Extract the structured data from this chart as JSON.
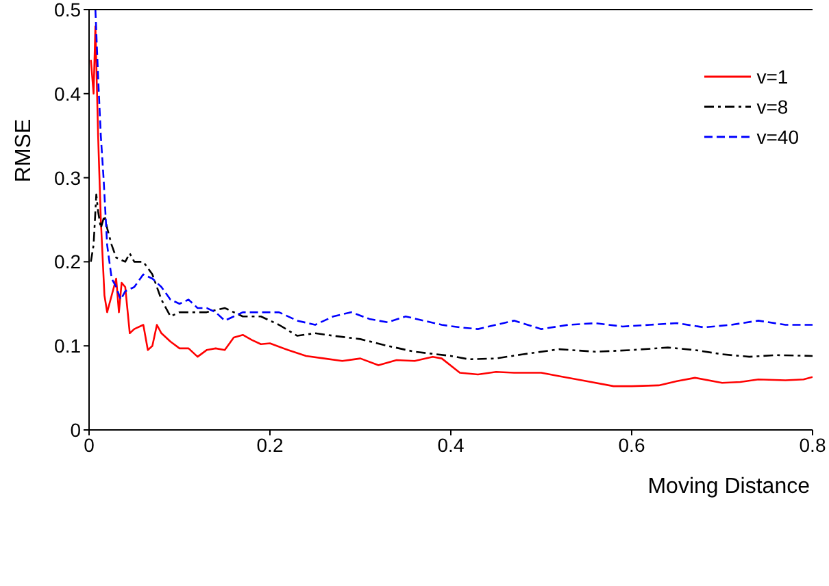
{
  "chart_data": {
    "type": "line",
    "xlabel": "Moving Distance",
    "ylabel": "RMSE",
    "xlim": [
      0,
      0.8
    ],
    "xticks": [
      0,
      0.2,
      0.4,
      0.6,
      0.8
    ],
    "ylim": [
      0,
      0.5
    ],
    "yticks": [
      0,
      0.1,
      0.2,
      0.3,
      0.4,
      0.5
    ],
    "legend": "top right",
    "marker": "none",
    "series": [
      {
        "name": "v=1",
        "color": "#ff0000",
        "line_style": "solid",
        "x": [
          0.002,
          0.005,
          0.007,
          0.01,
          0.013,
          0.017,
          0.02,
          0.025,
          0.03,
          0.033,
          0.036,
          0.04,
          0.045,
          0.05,
          0.06,
          0.065,
          0.07,
          0.075,
          0.08,
          0.09,
          0.1,
          0.11,
          0.12,
          0.13,
          0.14,
          0.15,
          0.16,
          0.17,
          0.18,
          0.19,
          0.2,
          0.22,
          0.24,
          0.26,
          0.28,
          0.3,
          0.32,
          0.34,
          0.36,
          0.38,
          0.39,
          0.41,
          0.43,
          0.45,
          0.47,
          0.5,
          0.52,
          0.55,
          0.58,
          0.6,
          0.63,
          0.65,
          0.67,
          0.7,
          0.72,
          0.74,
          0.77,
          0.79,
          0.8
        ],
        "values": [
          0.44,
          0.4,
          0.48,
          0.35,
          0.25,
          0.16,
          0.14,
          0.16,
          0.18,
          0.14,
          0.175,
          0.17,
          0.115,
          0.12,
          0.125,
          0.095,
          0.1,
          0.125,
          0.115,
          0.105,
          0.097,
          0.097,
          0.087,
          0.095,
          0.097,
          0.095,
          0.11,
          0.113,
          0.107,
          0.102,
          0.103,
          0.095,
          0.088,
          0.085,
          0.082,
          0.085,
          0.077,
          0.083,
          0.082,
          0.087,
          0.085,
          0.068,
          0.066,
          0.069,
          0.068,
          0.068,
          0.064,
          0.058,
          0.052,
          0.052,
          0.053,
          0.058,
          0.062,
          0.056,
          0.057,
          0.06,
          0.059,
          0.06,
          0.063
        ]
      },
      {
        "name": "v=8",
        "color": "#000000",
        "line_style": "dashdot",
        "x": [
          0.002,
          0.005,
          0.008,
          0.01,
          0.013,
          0.017,
          0.02,
          0.025,
          0.03,
          0.04,
          0.045,
          0.05,
          0.06,
          0.07,
          0.08,
          0.09,
          0.1,
          0.11,
          0.13,
          0.15,
          0.17,
          0.19,
          0.21,
          0.23,
          0.25,
          0.27,
          0.3,
          0.33,
          0.36,
          0.4,
          0.42,
          0.45,
          0.48,
          0.52,
          0.56,
          0.6,
          0.64,
          0.67,
          0.7,
          0.73,
          0.76,
          0.8
        ],
        "values": [
          0.2,
          0.22,
          0.28,
          0.26,
          0.24,
          0.255,
          0.24,
          0.22,
          0.205,
          0.2,
          0.21,
          0.2,
          0.2,
          0.185,
          0.155,
          0.135,
          0.14,
          0.14,
          0.14,
          0.145,
          0.135,
          0.135,
          0.125,
          0.112,
          0.115,
          0.112,
          0.108,
          0.1,
          0.093,
          0.088,
          0.084,
          0.085,
          0.09,
          0.096,
          0.093,
          0.095,
          0.098,
          0.095,
          0.09,
          0.087,
          0.089,
          0.088
        ]
      },
      {
        "name": "v=40",
        "color": "#0000ff",
        "line_style": "dashed",
        "x": [
          0.007,
          0.01,
          0.013,
          0.016,
          0.02,
          0.025,
          0.03,
          0.035,
          0.04,
          0.05,
          0.06,
          0.07,
          0.08,
          0.09,
          0.1,
          0.11,
          0.12,
          0.13,
          0.14,
          0.15,
          0.16,
          0.17,
          0.19,
          0.21,
          0.23,
          0.25,
          0.27,
          0.29,
          0.31,
          0.33,
          0.35,
          0.37,
          0.39,
          0.41,
          0.43,
          0.45,
          0.47,
          0.5,
          0.53,
          0.56,
          0.59,
          0.62,
          0.65,
          0.68,
          0.71,
          0.74,
          0.77,
          0.8
        ],
        "values": [
          0.5,
          0.42,
          0.35,
          0.3,
          0.22,
          0.18,
          0.17,
          0.155,
          0.165,
          0.17,
          0.185,
          0.18,
          0.17,
          0.155,
          0.15,
          0.155,
          0.145,
          0.145,
          0.14,
          0.13,
          0.135,
          0.14,
          0.14,
          0.14,
          0.13,
          0.125,
          0.135,
          0.14,
          0.132,
          0.128,
          0.135,
          0.13,
          0.125,
          0.122,
          0.12,
          0.125,
          0.13,
          0.12,
          0.125,
          0.127,
          0.123,
          0.125,
          0.127,
          0.122,
          0.125,
          0.13,
          0.125,
          0.125
        ]
      }
    ]
  }
}
